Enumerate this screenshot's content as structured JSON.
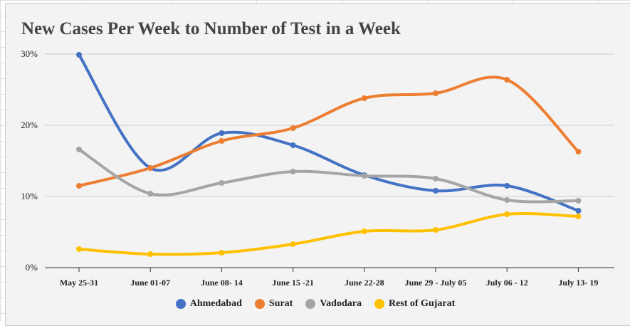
{
  "chart_data": {
    "type": "line",
    "title": "New Cases Per Week to Number of Test in a Week",
    "categories": [
      "May 25-31",
      "June 01-07",
      "June 08- 14",
      "June 15 -21",
      "June 22-28",
      "June 29 - July 05",
      "July 06 - 12",
      "July 13- 19"
    ],
    "yticks": [
      "0%",
      "10%",
      "20%",
      "30%"
    ],
    "ylim": [
      0,
      30
    ],
    "grid": true,
    "legend": "bottom",
    "series": [
      {
        "name": "Ahmedabad",
        "color": "#4472c4",
        "values": [
          29.9,
          14.0,
          18.9,
          17.2,
          13.0,
          10.8,
          11.5,
          8.0
        ]
      },
      {
        "name": "Surat",
        "color": "#ed7d31",
        "values": [
          11.5,
          14.0,
          17.8,
          19.6,
          23.8,
          24.5,
          26.4,
          16.3
        ]
      },
      {
        "name": "Vadodara",
        "color": "#a5a5a5",
        "values": [
          16.6,
          10.4,
          11.9,
          13.5,
          12.9,
          12.5,
          9.5,
          9.4
        ]
      },
      {
        "name": "Rest of Gujarat",
        "color": "#ffc000",
        "values": [
          2.6,
          1.9,
          2.1,
          3.3,
          5.1,
          5.3,
          7.5,
          7.2
        ]
      }
    ]
  }
}
